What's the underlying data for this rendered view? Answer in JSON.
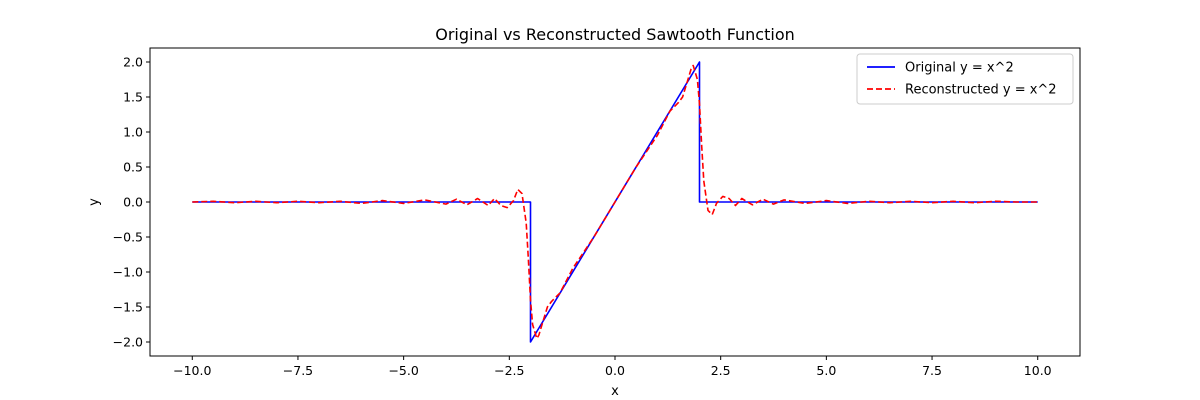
{
  "chart_data": {
    "type": "line",
    "title": "Original vs Reconstructed Sawtooth Function",
    "xlabel": "x",
    "ylabel": "y",
    "xlim": [
      -11.0,
      11.0
    ],
    "ylim": [
      -2.2,
      2.2
    ],
    "xticks": [
      -10.0,
      -7.5,
      -5.0,
      -2.5,
      0.0,
      2.5,
      5.0,
      7.5,
      10.0
    ],
    "xtick_labels": [
      "−10.0",
      "−7.5",
      "−5.0",
      "−2.5",
      "0.0",
      "2.5",
      "5.0",
      "7.5",
      "10.0"
    ],
    "yticks": [
      -2.0,
      -1.5,
      -1.0,
      -0.5,
      0.0,
      0.5,
      1.0,
      1.5,
      2.0
    ],
    "ytick_labels": [
      "−2.0",
      "−1.5",
      "−1.0",
      "−0.5",
      "0.0",
      "0.5",
      "1.0",
      "1.5",
      "2.0"
    ],
    "grid": false,
    "legend_position": "top-right",
    "series": [
      {
        "name": "Original y = x^2",
        "color": "#0000ff",
        "style": "solid",
        "x": [
          -10.0,
          -2.0,
          -2.0,
          2.0,
          2.0,
          10.0
        ],
        "y": [
          0.0,
          0.0,
          -2.0,
          2.0,
          0.0,
          0.0
        ]
      },
      {
        "name": "Reconstructed y = x^2",
        "color": "#ff0000",
        "style": "dashed",
        "x": [
          -10.0,
          -9.5,
          -9.0,
          -8.5,
          -8.0,
          -7.5,
          -7.0,
          -6.5,
          -6.0,
          -5.5,
          -5.0,
          -4.5,
          -4.0,
          -3.75,
          -3.5,
          -3.25,
          -3.0,
          -2.85,
          -2.7,
          -2.55,
          -2.4,
          -2.3,
          -2.2,
          -2.1,
          -2.05,
          -2.0,
          -1.95,
          -1.9,
          -1.85,
          -1.8,
          -1.7,
          -1.6,
          -1.5,
          -1.3,
          -1.0,
          -0.5,
          0.0,
          0.5,
          1.0,
          1.3,
          1.5,
          1.6,
          1.7,
          1.8,
          1.85,
          1.9,
          1.95,
          2.0,
          2.05,
          2.1,
          2.2,
          2.3,
          2.4,
          2.55,
          2.7,
          2.85,
          3.0,
          3.25,
          3.5,
          3.75,
          4.0,
          4.5,
          5.0,
          5.5,
          6.0,
          6.5,
          7.0,
          7.5,
          8.0,
          8.5,
          9.0,
          9.5,
          10.0
        ],
        "y": [
          0.0,
          0.01,
          -0.01,
          0.01,
          -0.01,
          0.01,
          -0.01,
          0.01,
          -0.02,
          0.02,
          -0.02,
          0.03,
          -0.03,
          0.04,
          -0.04,
          0.05,
          -0.05,
          0.05,
          -0.05,
          -0.08,
          0.02,
          0.18,
          0.12,
          -0.3,
          -0.8,
          -1.4,
          -1.75,
          -1.85,
          -1.95,
          -1.9,
          -1.7,
          -1.5,
          -1.42,
          -1.3,
          -0.95,
          -0.5,
          0.0,
          0.5,
          0.95,
          1.3,
          1.42,
          1.5,
          1.7,
          1.9,
          1.95,
          1.85,
          1.75,
          1.4,
          0.8,
          0.3,
          -0.12,
          -0.18,
          -0.02,
          0.08,
          0.05,
          -0.05,
          0.05,
          -0.04,
          0.04,
          -0.03,
          0.03,
          -0.02,
          0.02,
          -0.02,
          0.01,
          -0.01,
          0.01,
          -0.01,
          0.01,
          -0.01,
          0.01,
          0.0,
          0.0
        ]
      }
    ]
  }
}
